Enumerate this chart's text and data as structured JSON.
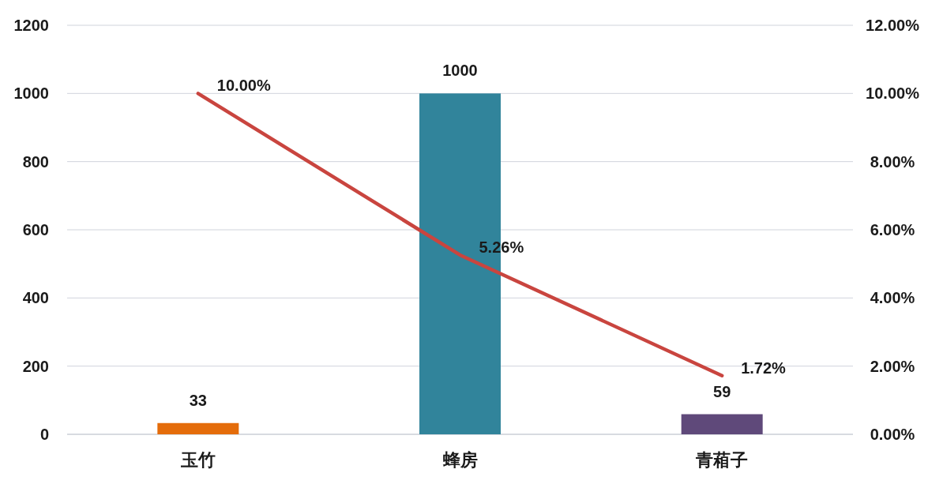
{
  "chart_data": {
    "type": "bar",
    "categories": [
      "玉竹",
      "蜂房",
      "青葙子"
    ],
    "series": [
      {
        "colors": [
          "#e46c0a",
          "#31849b",
          "#5f497a"
        ],
        "values": [
          33,
          1000,
          59
        ],
        "value_labels": [
          "33",
          "1000",
          "59"
        ]
      },
      {
        "type": "line",
        "axis": "y2",
        "color": "#c9453f",
        "values": [
          10,
          5.26,
          1.72
        ],
        "value_labels": [
          "10.00%",
          "5.26%",
          "1.72%"
        ]
      }
    ],
    "ylim": [
      0,
      1200
    ],
    "yticks": [
      0,
      200,
      400,
      600,
      800,
      1000,
      1200
    ],
    "y2lim": [
      0,
      12
    ],
    "y2ticks": [
      {
        "value": 0,
        "label": "0.00%"
      },
      {
        "value": 2,
        "label": "2.00%"
      },
      {
        "value": 4,
        "label": "4.00%"
      },
      {
        "value": 6,
        "label": "6.00%"
      },
      {
        "value": 8,
        "label": "8.00%"
      },
      {
        "value": 10,
        "label": "10.00%"
      },
      {
        "value": 12,
        "label": "12.00%"
      }
    ],
    "grid": "y"
  }
}
